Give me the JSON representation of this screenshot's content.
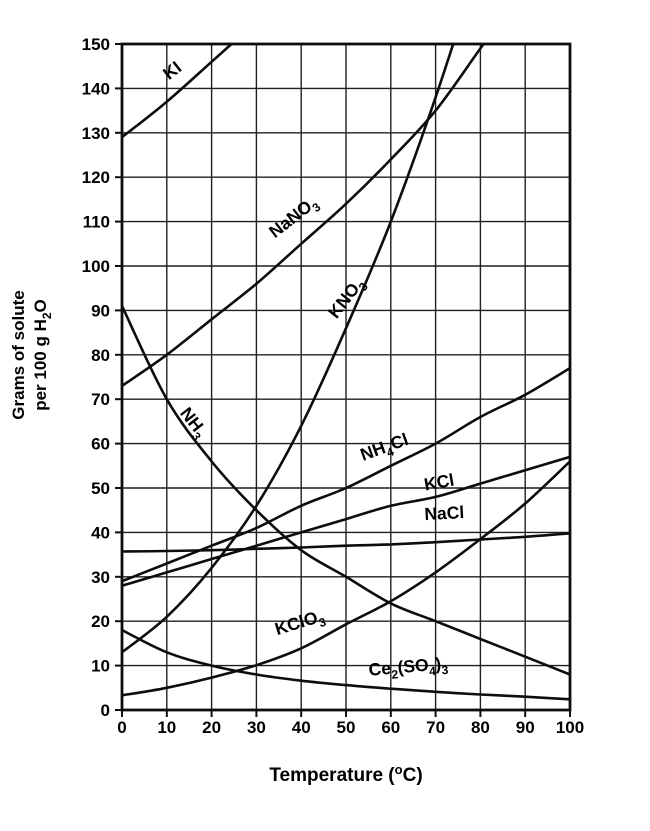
{
  "page": {
    "background": "#ffffff"
  },
  "chart_data": {
    "type": "line",
    "title": "",
    "xlabel_segments": [
      {
        "t": "Temperature (",
        "s": ""
      },
      {
        "t": "o",
        "s": "sup"
      },
      {
        "t": "C)",
        "s": ""
      }
    ],
    "ylabel_lines": [
      [
        {
          "t": "Grams of solute",
          "s": ""
        }
      ],
      [
        {
          "t": "per 100 g H",
          "s": ""
        },
        {
          "t": "2",
          "s": "sub"
        },
        {
          "t": "O",
          "s": ""
        }
      ]
    ],
    "xlim": [
      0,
      100
    ],
    "ylim": [
      0,
      150
    ],
    "xticks": [
      0,
      10,
      20,
      30,
      40,
      50,
      60,
      70,
      80,
      90,
      100
    ],
    "yticks": [
      0,
      10,
      20,
      30,
      40,
      50,
      60,
      70,
      80,
      90,
      100,
      110,
      120,
      130,
      140,
      150
    ],
    "grid": true,
    "legend": "labels-on-curves",
    "colors": {
      "background": "#ffffff",
      "grid": "#1f1f1f",
      "axis": "#0d0d0d",
      "curve": "#0d0d0d",
      "text": "#000000"
    },
    "series": [
      {
        "name": "KI",
        "label_segments": [
          {
            "t": "KI",
            "s": ""
          }
        ],
        "x": [
          0,
          10,
          20,
          30
        ],
        "values": [
          129,
          137,
          146,
          155
        ],
        "label_pos": {
          "x": 12,
          "y": 143,
          "rotate": -38
        }
      },
      {
        "name": "NaNO3",
        "label_segments": [
          {
            "t": "NaNO",
            "s": ""
          },
          {
            "t": "3",
            "s": "sub"
          }
        ],
        "x": [
          0,
          10,
          20,
          30,
          40,
          50,
          60,
          70,
          80,
          90
        ],
        "values": [
          73,
          80,
          88,
          96,
          105,
          114,
          124,
          135,
          149,
          163
        ],
        "label_pos": {
          "x": 39,
          "y": 110,
          "rotate": -38
        }
      },
      {
        "name": "KNO3",
        "label_segments": [
          {
            "t": "KNO",
            "s": ""
          },
          {
            "t": "3",
            "s": "sub"
          }
        ],
        "x": [
          0,
          10,
          20,
          30,
          40,
          50,
          60,
          70,
          80
        ],
        "values": [
          13,
          21,
          32,
          46,
          64,
          86,
          110,
          138,
          169
        ],
        "label_pos": {
          "x": 51,
          "y": 92,
          "rotate": -52
        }
      },
      {
        "name": "NH3",
        "label_segments": [
          {
            "t": "NH",
            "s": ""
          },
          {
            "t": "3",
            "s": "sub"
          }
        ],
        "x": [
          0,
          10,
          20,
          30,
          40,
          50,
          60,
          70,
          80,
          90,
          100
        ],
        "values": [
          91,
          70,
          56,
          45,
          36,
          30,
          24,
          20,
          16,
          12,
          8
        ],
        "label_pos": {
          "x": 15,
          "y": 64,
          "rotate": 52
        }
      },
      {
        "name": "NH4Cl",
        "label_segments": [
          {
            "t": "NH",
            "s": ""
          },
          {
            "t": "4",
            "s": "sub"
          },
          {
            "t": "Cl",
            "s": ""
          }
        ],
        "x": [
          0,
          10,
          20,
          30,
          40,
          50,
          60,
          70,
          80,
          90,
          100
        ],
        "values": [
          29,
          33,
          37,
          41,
          46,
          50,
          55,
          60,
          66,
          71,
          77
        ],
        "label_pos": {
          "x": 59,
          "y": 58,
          "rotate": -20
        }
      },
      {
        "name": "KCl",
        "label_segments": [
          {
            "t": "KCl",
            "s": ""
          }
        ],
        "x": [
          0,
          10,
          20,
          30,
          40,
          50,
          60,
          70,
          80,
          90,
          100
        ],
        "values": [
          28,
          31,
          34,
          37,
          40,
          43,
          46,
          48,
          51,
          54,
          57
        ],
        "label_pos": {
          "x": 71,
          "y": 50,
          "rotate": -10
        }
      },
      {
        "name": "NaCl",
        "label_segments": [
          {
            "t": "NaCl",
            "s": ""
          }
        ],
        "x": [
          0,
          10,
          20,
          30,
          40,
          50,
          60,
          70,
          80,
          90,
          100
        ],
        "values": [
          35.7,
          35.8,
          36,
          36.3,
          36.6,
          37,
          37.3,
          37.8,
          38.4,
          39,
          39.8
        ],
        "label_pos": {
          "x": 72,
          "y": 43,
          "rotate": -3
        }
      },
      {
        "name": "KClO3",
        "label_segments": [
          {
            "t": "KClO",
            "s": ""
          },
          {
            "t": "3",
            "s": "sub"
          }
        ],
        "x": [
          0,
          10,
          20,
          30,
          40,
          50,
          60,
          70,
          80,
          90,
          100
        ],
        "values": [
          3.3,
          5,
          7.3,
          10.1,
          13.9,
          19.3,
          24.5,
          31,
          38.5,
          46.5,
          56
        ],
        "label_pos": {
          "x": 40,
          "y": 18.5,
          "rotate": -17
        }
      },
      {
        "name": "Ce2(SO4)3",
        "label_segments": [
          {
            "t": "Ce",
            "s": ""
          },
          {
            "t": "2",
            "s": "sub"
          },
          {
            "t": "(SO",
            "s": ""
          },
          {
            "t": "4",
            "s": "sub"
          },
          {
            "t": ")",
            "s": ""
          },
          {
            "t": "3",
            "s": "sub"
          }
        ],
        "x": [
          0,
          10,
          20,
          30,
          40,
          50,
          60,
          70,
          80,
          90,
          100
        ],
        "values": [
          18,
          13,
          10,
          8,
          6.6,
          5.6,
          4.8,
          4.1,
          3.5,
          3,
          2.4
        ],
        "label_pos": {
          "x": 64,
          "y": 8.5,
          "rotate": -5
        }
      }
    ]
  }
}
